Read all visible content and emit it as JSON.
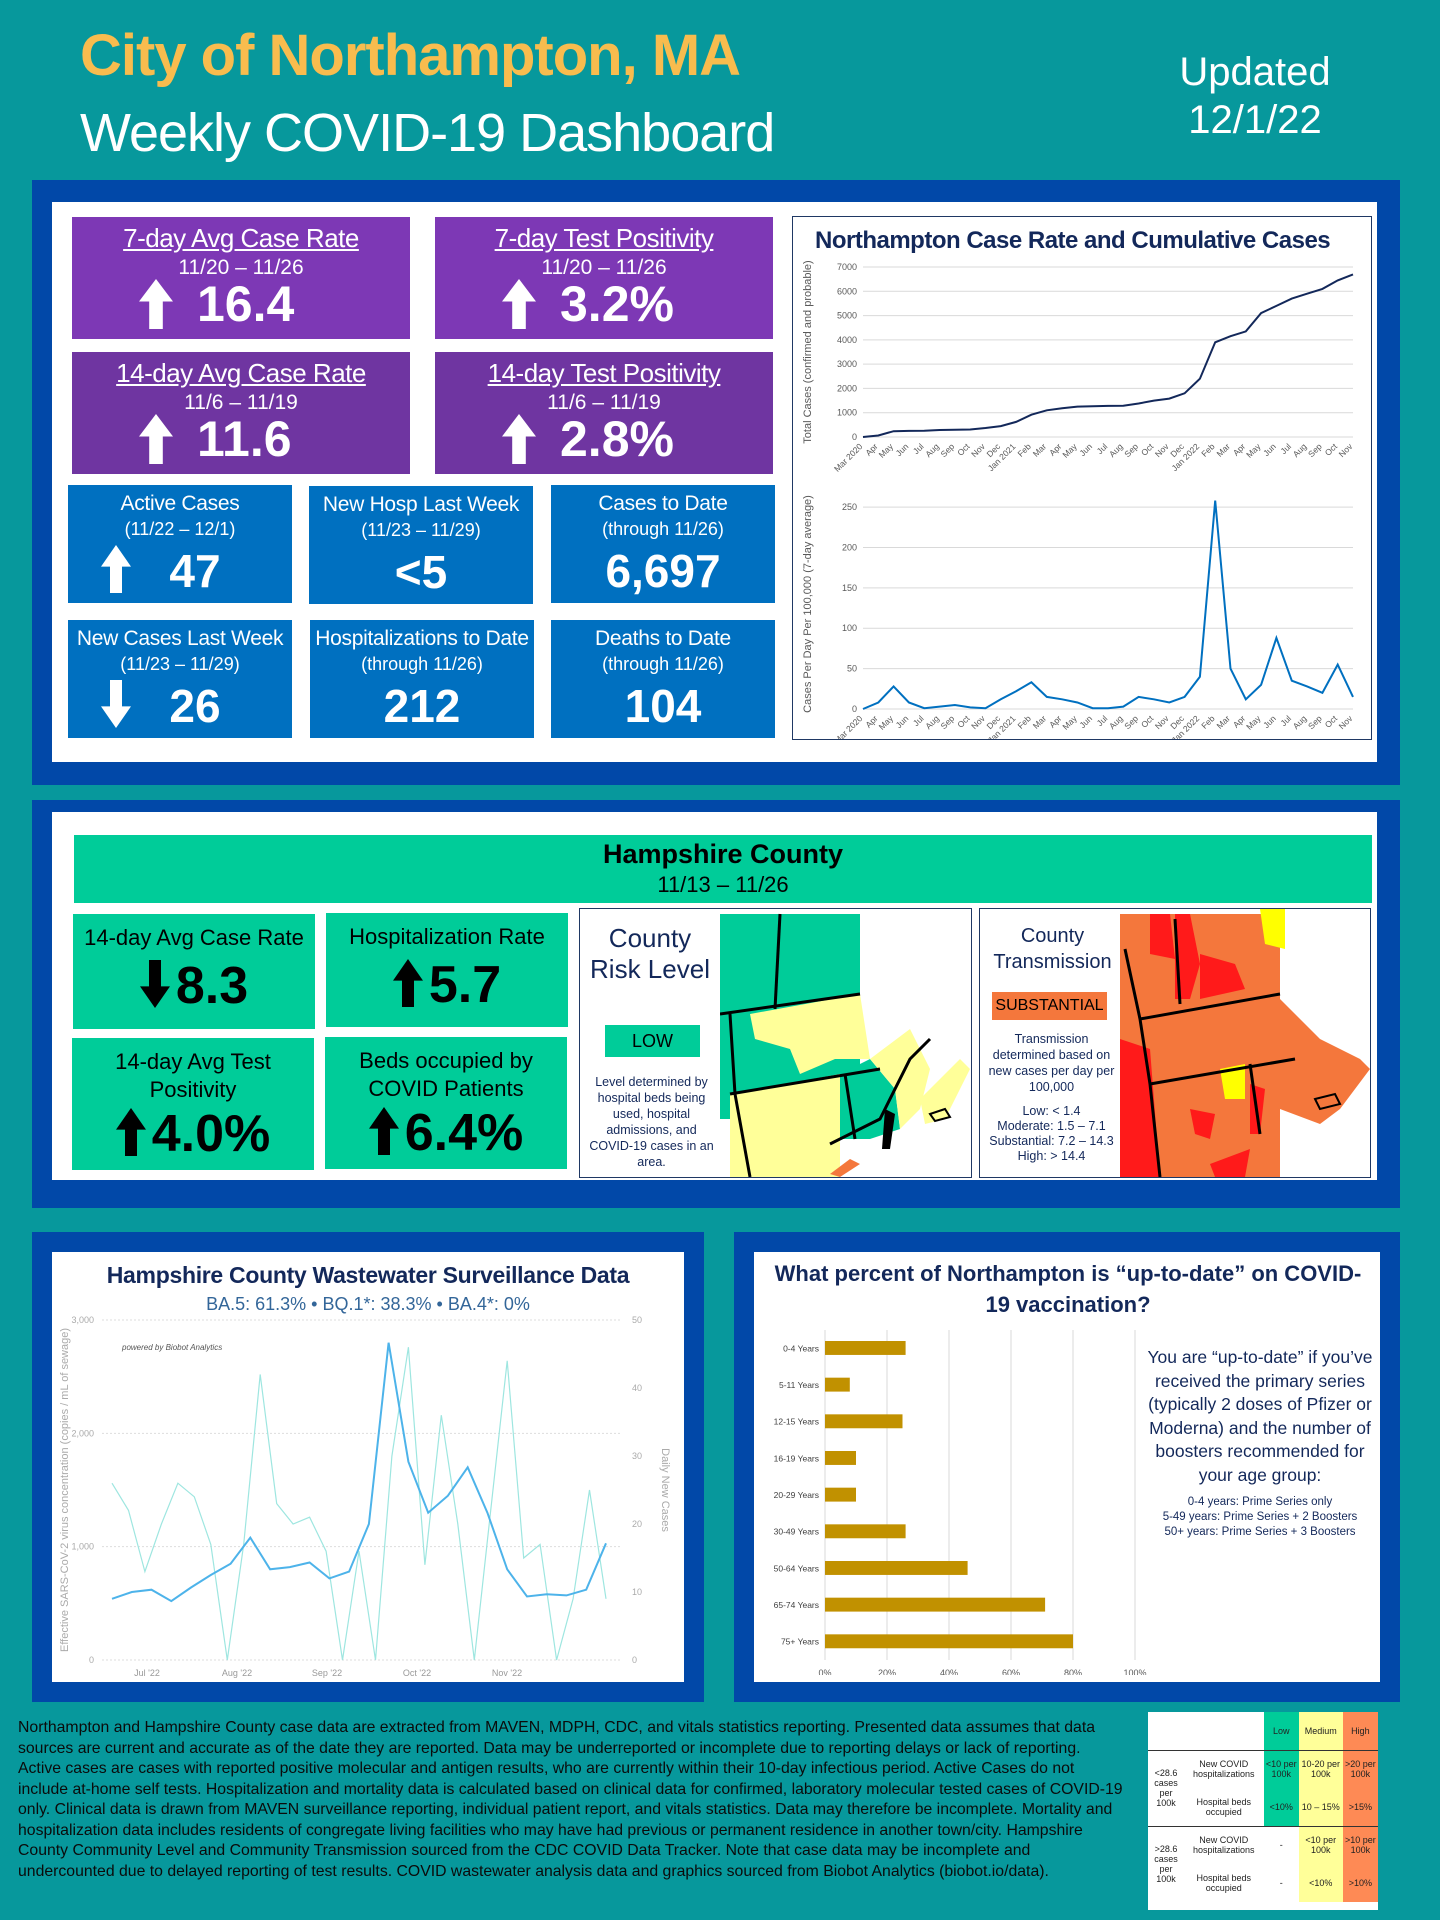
{
  "header": {
    "city": "City of Northampton, MA",
    "subtitle": "Weekly COVID-19 Dashboard",
    "updated_label": "Updated",
    "updated_date": "12/1/22"
  },
  "city_metrics": {
    "purple": [
      {
        "title": "7-day Avg Case Rate",
        "period": "11/20 – 11/26",
        "value": "16.4",
        "trend": "up"
      },
      {
        "title": "7-day Test Positivity",
        "period": "11/20 – 11/26",
        "value": "3.2%",
        "trend": "up"
      },
      {
        "title": "14-day Avg Case Rate",
        "period": "11/6 – 11/19",
        "value": "11.6",
        "trend": "up"
      },
      {
        "title": "14-day Test Positivity",
        "period": "11/6 – 11/19",
        "value": "2.8%",
        "trend": "up"
      }
    ],
    "blue": [
      {
        "title": "Active Cases",
        "period": "(11/22 – 12/1)",
        "value": "47",
        "trend": "up"
      },
      {
        "title": "New Hosp Last Week",
        "period": "(11/23 – 11/29)",
        "value": "<5",
        "trend": "none"
      },
      {
        "title": "Cases to Date",
        "period": "(through 11/26)",
        "value": "6,697",
        "trend": "none"
      },
      {
        "title": "New Cases Last Week",
        "period": "(11/23 – 11/29)",
        "value": "26",
        "trend": "down"
      },
      {
        "title": "Hospitalizations to Date",
        "period": "(through 11/26)",
        "value": "212",
        "trend": "none"
      },
      {
        "title": "Deaths to Date",
        "period": "(through 11/26)",
        "value": "104",
        "trend": "none"
      }
    ]
  },
  "county": {
    "title": "Hampshire County",
    "period": "11/13 – 11/26",
    "metrics": [
      {
        "title": "14-day Avg Case Rate",
        "value": "8.3",
        "trend": "down"
      },
      {
        "title": "Hospitalization Rate",
        "value": "5.7",
        "trend": "up"
      },
      {
        "title": "14-day Avg Test Positivity",
        "value": "4.0%",
        "trend": "up"
      },
      {
        "title": "Beds occupied by COVID Patients",
        "value": "6.4%",
        "trend": "up"
      }
    ],
    "risk": {
      "title": "County Risk Level",
      "level": "LOW",
      "level_color": "#00cc99",
      "note": "Level determined by hospital beds being used, hospital admissions, and COVID-19 cases in an area."
    },
    "transmission": {
      "title": "County Transmission",
      "level": "SUBSTANTIAL",
      "level_color": "#f4773c",
      "note": "Transmission determined based on new cases per day per 100,000",
      "thresholds": [
        "Low: < 1.4",
        "Moderate: 1.5 – 7.1",
        "Substantial: 7.2 – 14.3",
        "High: > 14.4"
      ]
    }
  },
  "chart_data": [
    {
      "type": "line",
      "title": "Northampton Case Rate and Cumulative Cases",
      "ylabel": "Total Cases (confirmed and probable)",
      "ylim": [
        0,
        7000
      ],
      "yticks": [
        0,
        1000,
        2000,
        3000,
        4000,
        5000,
        6000,
        7000
      ],
      "x": [
        "Mar 2020",
        "Apr",
        "May",
        "Jun",
        "Jul",
        "Aug",
        "Sep",
        "Oct",
        "Nov",
        "Dec",
        "Jan 2021",
        "Feb",
        "Mar",
        "Apr",
        "May",
        "Jun",
        "Jul",
        "Aug",
        "Sep",
        "Oct",
        "Nov",
        "Dec",
        "Jan 2022",
        "Feb",
        "Mar",
        "Apr",
        "May",
        "Jun",
        "Jul",
        "Aug",
        "Sep",
        "Oct",
        "Nov"
      ],
      "values": [
        0,
        60,
        240,
        250,
        260,
        290,
        300,
        310,
        370,
        450,
        620,
        920,
        1100,
        1180,
        1250,
        1270,
        1280,
        1290,
        1380,
        1500,
        1580,
        1800,
        2400,
        3900,
        4150,
        4350,
        5100,
        5400,
        5700,
        5900,
        6100,
        6450,
        6697
      ]
    },
    {
      "type": "line",
      "ylabel": "Cases Per Day Per 100,000 (7-day average)",
      "ylim": [
        0,
        260
      ],
      "yticks": [
        0,
        50,
        100,
        150,
        200,
        250
      ],
      "x": [
        "Mar 2020",
        "Apr",
        "May",
        "Jun",
        "Jul",
        "Aug",
        "Sep",
        "Oct",
        "Nov",
        "Dec",
        "Jan 2021",
        "Feb",
        "Mar",
        "Apr",
        "May",
        "Jun",
        "Jul",
        "Aug",
        "Sep",
        "Oct",
        "Nov",
        "Dec",
        "Jan 2022",
        "Feb",
        "Mar",
        "Apr",
        "May",
        "Jun",
        "Jul",
        "Aug",
        "Sep",
        "Oct",
        "Nov"
      ],
      "values": [
        0,
        8,
        28,
        8,
        1,
        3,
        5,
        2,
        1,
        12,
        22,
        33,
        15,
        12,
        8,
        1,
        1,
        3,
        15,
        12,
        8,
        15,
        40,
        258,
        50,
        12,
        30,
        88,
        35,
        28,
        20,
        55,
        15
      ]
    },
    {
      "type": "line",
      "title": "Hampshire County Wastewater Surveillance Data",
      "subtitle": "BA.5: 61.3% • BQ.1*: 38.3% • BA.4*: 0%",
      "attribution": "powered by Biobot Analytics",
      "ylabel": "Effective SARS-CoV-2 virus concentration (copies / mL of sewage)",
      "y2label": "Daily New Cases",
      "ylim": [
        0,
        3000
      ],
      "yticks": [
        "0",
        "1,000",
        "2,000",
        "3,000"
      ],
      "y2lim": [
        0,
        50
      ],
      "y2ticks": [
        "0",
        "10",
        "20",
        "30",
        "40",
        "50"
      ],
      "xticks": [
        "Jul '22",
        "Aug '22",
        "Sep '22",
        "Oct '22",
        "Nov '22"
      ],
      "series": [
        {
          "name": "Effective virus concentration",
          "color": "#4db3ea",
          "values": [
            540,
            600,
            620,
            520,
            640,
            750,
            850,
            1080,
            800,
            820,
            860,
            720,
            780,
            1200,
            2800,
            1750,
            1300,
            1450,
            1700,
            1300,
            800,
            560,
            580,
            570,
            620,
            1030
          ]
        },
        {
          "name": "Daily New Cases",
          "color": "#9ee6e0",
          "values": [
            26,
            22,
            13,
            20,
            26,
            24,
            17,
            0,
            17,
            42,
            23,
            20,
            21,
            16,
            0,
            16,
            0,
            30,
            46,
            14,
            36,
            20,
            0,
            22,
            44,
            15,
            17,
            0,
            9,
            25,
            9
          ]
        }
      ]
    },
    {
      "type": "bar",
      "title": "What percent of Northampton is “up-to-date” on COVID-19 vaccination?",
      "categories": [
        "0-4 Years",
        "5-11 Years",
        "12-15 Years",
        "16-19 Years",
        "20-29 Years",
        "30-49 Years",
        "50-64 Years",
        "65-74 Years",
        "75+ Years"
      ],
      "values": [
        26,
        8,
        25,
        10,
        10,
        26,
        46,
        71,
        80
      ],
      "xlim": [
        0,
        100
      ],
      "xticks": [
        "0%",
        "20%",
        "40%",
        "60%",
        "80%",
        "100%"
      ],
      "color": "#c19100"
    }
  ],
  "vaccination_note": {
    "main": "You are “up-to-date” if you’ve received the primary series (typically 2 doses of Pfizer or Moderna) and the number of boosters recommended for your age group:",
    "lines": [
      "0-4 years: Prime Series only",
      "5-49 years: Prime Series + 2 Boosters",
      "50+ years: Prime Series + 3 Boosters"
    ]
  },
  "footer": "Northampton and Hampshire County case data are extracted from MAVEN, MDPH, CDC, and vitals statistics reporting. Presented data assumes that data sources are current and accurate as of the date they are reported. Data may be underreported or incomplete due to reporting delays or lack of reporting. Active cases are cases with reported positive molecular and antigen results, who are currently within their 10-day infectious period. Active Cases do not include at-home self tests. Hospitalization and mortality data is calculated based on clinical data for confirmed, laboratory molecular tested cases of COVID-19 only. Clinical data is drawn from MAVEN surveillance reporting, individual patient report, and vitals statistics. Data may therefore be incomplete. Mortality and hospitalization data includes residents of congregate living facilities who may have had previous or permanent residence in another town/city. Hampshire County Community Level and Community Transmission sourced from the CDC COVID Data Tracker. Note that case data may be incomplete and undercounted due to delayed reporting of test results. COVID wastewater analysis data and graphics sourced from Biobot Analytics (biobot.io/data).",
  "key_table": {
    "headers": [
      "Low",
      "Medium",
      "High"
    ],
    "groups": [
      {
        "label": "<28.6 cases per 100k",
        "rows": [
          [
            "New COVID hospitalizations",
            "<10 per 100k",
            "10-20 per 100k",
            ">20 per 100k"
          ],
          [
            "Hospital beds occupied",
            "<10%",
            "10 – 15%",
            ">15%"
          ]
        ]
      },
      {
        "label": ">28.6 cases per 100k",
        "rows": [
          [
            "New COVID hospitalizations",
            "-",
            "<10 per 100k",
            ">10 per 100k"
          ],
          [
            "Hospital beds occupied",
            "-",
            "<10%",
            ">10%"
          ]
        ]
      }
    ],
    "colors": {
      "low": "#00cc99",
      "medium": "#ffff99",
      "high": "#fe8a55"
    }
  }
}
